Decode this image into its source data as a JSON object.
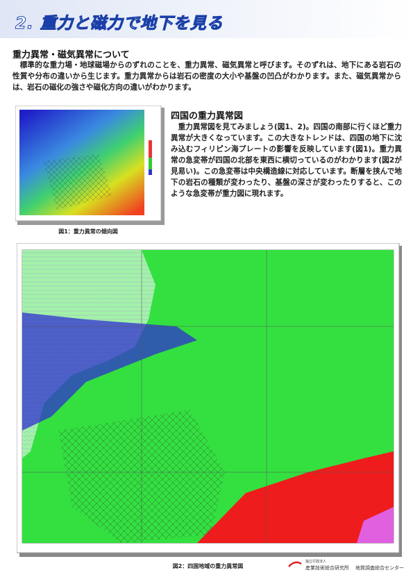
{
  "header": {
    "title": "2. 重力と磁力で地下を見る"
  },
  "intro": {
    "heading": "重力異常・磁気異常について",
    "text": "標準的な重力場・地球磁場からのずれのことを、重力異常、磁気異常と呼びます。そのずれは、地下にある岩石の性質や分布の違いから生じます。重力異常からは岩石の密度の大小や基盤の凹凸がわかります。また、磁気異常からは、岩石の磁化の強さや磁化方向の違いがわかります。"
  },
  "figure1": {
    "caption": "図1：重力異常の傾向図"
  },
  "shikoku": {
    "heading": "四国の重力異常図",
    "text": "重力異常図を見てみましょう(図1、2)。四国の南部に行くほど重力異常が大きくなっています。この大きなトレンドは、四国の地下に沈み込むフィリピン海プレートの影響を反映しています(図1)。重力異常の急変帯が四国の北部を東西に横切っているのがわかります(図2が見易い)。この急変帯は中央構造線に対応しています。断層を挟んで地下の岩石の種類が変わったり、基盤の深さが変わったりすると、このような急変帯が重力図に現れます。"
  },
  "figure2": {
    "caption": "図2：四国地域の重力異常図"
  },
  "footer": {
    "org_type": "独立行政法人",
    "org": "産業技術総合研究所",
    "center": "地質調査総合センター"
  }
}
